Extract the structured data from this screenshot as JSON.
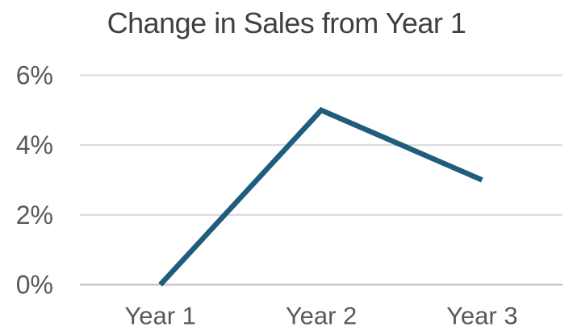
{
  "chart_data": {
    "type": "line",
    "title": "Change in Sales from Year 1",
    "categories": [
      "Year 1",
      "Year 2",
      "Year 3"
    ],
    "values": [
      0,
      5,
      3
    ],
    "value_unit": "percent",
    "yticks": [
      0,
      2,
      4,
      6
    ],
    "ytick_labels": [
      "0%",
      "2%",
      "4%",
      "6%"
    ],
    "ylim": [
      0,
      6
    ],
    "xlabel": "",
    "ylabel": "",
    "grid": true,
    "legend": false,
    "colors": {
      "line": "#1F5C7D",
      "gridline": "#D9D9D9",
      "axis_line": "#BFBFBF",
      "title_text": "#404040",
      "tick_text": "#595959",
      "background": "#FFFFFF"
    }
  }
}
